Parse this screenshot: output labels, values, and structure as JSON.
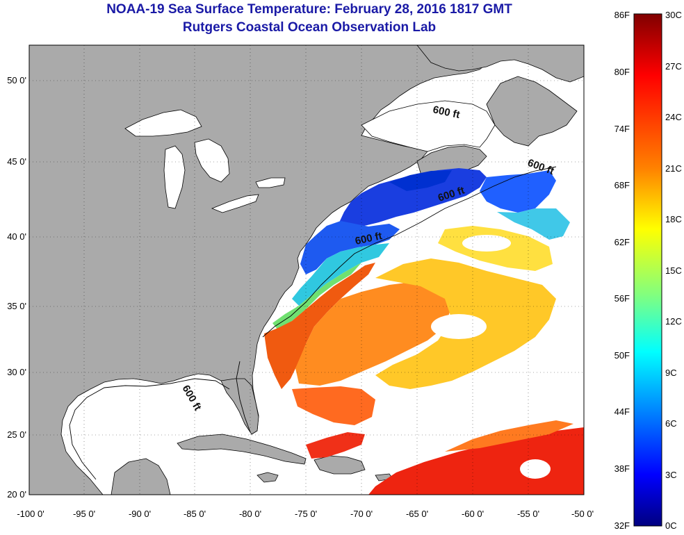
{
  "header": {
    "title": "NOAA-19 Sea Surface Temperature:  February 28, 2016 1817 GMT",
    "subtitle": "Rutgers Coastal Ocean Observation Lab"
  },
  "map": {
    "region": "Western North Atlantic",
    "lon_range": [
      -100,
      -50
    ],
    "lat_range": [
      20,
      52
    ],
    "lon_ticks": [
      "-100 0'",
      "-95 0'",
      "-90 0'",
      "-85 0'",
      "-80 0'",
      "-75 0'",
      "-70 0'",
      "-65 0'",
      "-60 0'",
      "-55 0'",
      "-50 0'"
    ],
    "lat_ticks": [
      "50 0'",
      "45 0'",
      "40 0'",
      "35 0'",
      "30 0'",
      "25 0'",
      "20 0'"
    ],
    "land_color": "#aaaaaa",
    "nodata_color": "#ffffff",
    "grid": "dotted",
    "isobath_labels": [
      "600 ft",
      "600 ft",
      "600 ft",
      "600 ft",
      "600 ft"
    ]
  },
  "colorbar": {
    "fahrenheit_labels": [
      "86F",
      "80F",
      "74F",
      "68F",
      "62F",
      "56F",
      "50F",
      "44F",
      "38F",
      "32F"
    ],
    "celsius_labels": [
      "30C",
      "27C",
      "24C",
      "21C",
      "18C",
      "15C",
      "12C",
      "9C",
      "6C",
      "3C",
      "0C"
    ],
    "colors_top_to_bottom": [
      "#800000",
      "#ff0000",
      "#ff8000",
      "#ffff00",
      "#80ff80",
      "#00ffff",
      "#0080ff",
      "#0000ff",
      "#000080"
    ]
  }
}
